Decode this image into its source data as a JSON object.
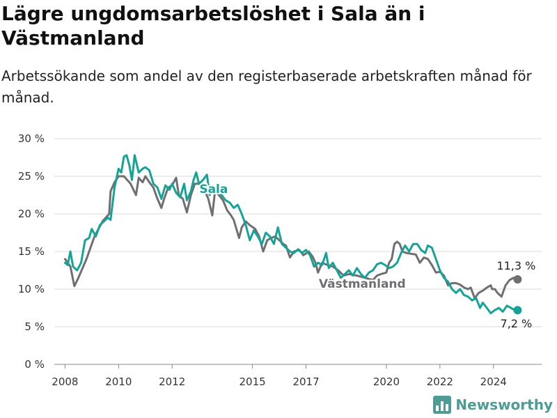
{
  "header": {
    "title": "Lägre ungdomsarbetslöshet i Sala än i Västmanland",
    "subtitle": "Arbetssökande som andel av den registerbaserade arbetskraften månad för månad."
  },
  "brand": {
    "name": "Newsworthy",
    "color": "#4f9b96"
  },
  "chart_data": {
    "type": "line",
    "yticks": [
      "0 %",
      "5 %",
      "10 %",
      "15 %",
      "20 %",
      "25 %",
      "30 %"
    ],
    "ylim": [
      0,
      30
    ],
    "xlim": [
      2007.6,
      2025.8
    ],
    "xticks": [
      {
        "value": 2008,
        "label": "2008"
      },
      {
        "value": 2010,
        "label": "2010"
      },
      {
        "value": 2012,
        "label": "2012"
      },
      {
        "value": 2015,
        "label": "2015"
      },
      {
        "value": 2017,
        "label": "2017"
      },
      {
        "value": 2020,
        "label": "2020"
      },
      {
        "value": 2022,
        "label": "2022"
      },
      {
        "value": 2024,
        "label": "2024"
      }
    ],
    "grid": true,
    "series": [
      {
        "name": "Västmanland",
        "color": "#6e6e73",
        "end_label": "11,3 %",
        "points": [
          [
            2008.0,
            14.0
          ],
          [
            2008.2,
            13.0
          ],
          [
            2008.35,
            10.4
          ],
          [
            2008.5,
            11.5
          ],
          [
            2008.8,
            14.0
          ],
          [
            2009.1,
            17.0
          ],
          [
            2009.4,
            19.0
          ],
          [
            2009.65,
            20.0
          ],
          [
            2009.7,
            23.0
          ],
          [
            2009.85,
            24.2
          ],
          [
            2010.0,
            25.0
          ],
          [
            2010.2,
            25.0
          ],
          [
            2010.45,
            24.0
          ],
          [
            2010.65,
            22.5
          ],
          [
            2010.75,
            24.8
          ],
          [
            2010.9,
            24.2
          ],
          [
            2011.0,
            25.0
          ],
          [
            2011.15,
            24.2
          ],
          [
            2011.3,
            23.5
          ],
          [
            2011.45,
            22.0
          ],
          [
            2011.6,
            20.8
          ],
          [
            2011.7,
            22.0
          ],
          [
            2011.85,
            23.5
          ],
          [
            2012.0,
            23.8
          ],
          [
            2012.15,
            24.8
          ],
          [
            2012.25,
            22.5
          ],
          [
            2012.4,
            22.0
          ],
          [
            2012.55,
            20.2
          ],
          [
            2012.7,
            22.5
          ],
          [
            2012.85,
            24.0
          ],
          [
            2013.0,
            24.0
          ],
          [
            2013.2,
            23.2
          ],
          [
            2013.35,
            22.0
          ],
          [
            2013.5,
            19.8
          ],
          [
            2013.6,
            23.0
          ],
          [
            2013.75,
            22.5
          ],
          [
            2013.9,
            21.8
          ],
          [
            2014.05,
            20.5
          ],
          [
            2014.2,
            19.8
          ],
          [
            2014.3,
            19.2
          ],
          [
            2014.4,
            18.0
          ],
          [
            2014.5,
            16.8
          ],
          [
            2014.6,
            18.2
          ],
          [
            2014.75,
            19.0
          ],
          [
            2014.9,
            18.5
          ],
          [
            2015.1,
            18.0
          ],
          [
            2015.25,
            17.0
          ],
          [
            2015.4,
            15.0
          ],
          [
            2015.55,
            16.5
          ],
          [
            2015.7,
            16.8
          ],
          [
            2015.85,
            17.0
          ],
          [
            2016.0,
            16.5
          ],
          [
            2016.15,
            16.0
          ],
          [
            2016.25,
            15.8
          ],
          [
            2016.4,
            14.2
          ],
          [
            2016.55,
            15.0
          ],
          [
            2016.75,
            15.2
          ],
          [
            2016.9,
            14.5
          ],
          [
            2017.1,
            15.0
          ],
          [
            2017.25,
            14.3
          ],
          [
            2017.35,
            13.5
          ],
          [
            2017.45,
            12.2
          ],
          [
            2017.6,
            13.5
          ],
          [
            2017.8,
            13.2
          ],
          [
            2018.0,
            13.0
          ],
          [
            2018.2,
            12.5
          ],
          [
            2018.4,
            11.8
          ],
          [
            2018.6,
            12.0
          ],
          [
            2018.9,
            11.8
          ],
          [
            2019.2,
            11.5
          ],
          [
            2019.5,
            11.2
          ],
          [
            2019.65,
            11.8
          ],
          [
            2019.8,
            12.0
          ],
          [
            2020.0,
            12.2
          ],
          [
            2020.1,
            13.5
          ],
          [
            2020.2,
            14.0
          ],
          [
            2020.3,
            16.0
          ],
          [
            2020.4,
            16.3
          ],
          [
            2020.5,
            16.0
          ],
          [
            2020.6,
            15.0
          ],
          [
            2020.75,
            14.8
          ],
          [
            2020.9,
            14.7
          ],
          [
            2021.1,
            14.6
          ],
          [
            2021.25,
            13.5
          ],
          [
            2021.4,
            14.2
          ],
          [
            2021.55,
            14.0
          ],
          [
            2021.7,
            13.2
          ],
          [
            2021.85,
            12.2
          ],
          [
            2022.0,
            12.3
          ],
          [
            2022.15,
            11.8
          ],
          [
            2022.3,
            10.5
          ],
          [
            2022.45,
            10.8
          ],
          [
            2022.6,
            10.8
          ],
          [
            2022.75,
            10.6
          ],
          [
            2022.9,
            10.2
          ],
          [
            2023.05,
            10.0
          ],
          [
            2023.15,
            10.2
          ],
          [
            2023.3,
            8.8
          ],
          [
            2023.45,
            9.5
          ],
          [
            2023.6,
            9.8
          ],
          [
            2023.75,
            10.2
          ],
          [
            2023.9,
            10.5
          ],
          [
            2023.95,
            10.0
          ],
          [
            2024.05,
            10.0
          ],
          [
            2024.15,
            9.5
          ],
          [
            2024.3,
            9.0
          ],
          [
            2024.45,
            10.5
          ],
          [
            2024.6,
            11.2
          ],
          [
            2024.75,
            11.5
          ],
          [
            2024.9,
            11.3
          ]
        ]
      },
      {
        "name": "Sala",
        "color": "#15a396",
        "end_label": "7,2 %",
        "points": [
          [
            2008.0,
            13.5
          ],
          [
            2008.1,
            13.2
          ],
          [
            2008.2,
            15.0
          ],
          [
            2008.3,
            13.0
          ],
          [
            2008.45,
            12.5
          ],
          [
            2008.6,
            13.5
          ],
          [
            2008.75,
            16.5
          ],
          [
            2008.9,
            16.8
          ],
          [
            2009.0,
            18.0
          ],
          [
            2009.15,
            17.0
          ],
          [
            2009.3,
            18.5
          ],
          [
            2009.45,
            19.0
          ],
          [
            2009.6,
            19.5
          ],
          [
            2009.7,
            19.2
          ],
          [
            2009.85,
            23.5
          ],
          [
            2010.0,
            26.0
          ],
          [
            2010.1,
            25.5
          ],
          [
            2010.2,
            27.6
          ],
          [
            2010.3,
            27.8
          ],
          [
            2010.4,
            26.5
          ],
          [
            2010.5,
            24.5
          ],
          [
            2010.6,
            27.8
          ],
          [
            2010.75,
            25.5
          ],
          [
            2010.9,
            26.0
          ],
          [
            2011.0,
            26.2
          ],
          [
            2011.15,
            25.8
          ],
          [
            2011.3,
            24.0
          ],
          [
            2011.45,
            23.5
          ],
          [
            2011.6,
            22.0
          ],
          [
            2011.75,
            23.8
          ],
          [
            2011.9,
            23.2
          ],
          [
            2012.0,
            24.0
          ],
          [
            2012.15,
            22.8
          ],
          [
            2012.3,
            22.2
          ],
          [
            2012.45,
            24.0
          ],
          [
            2012.55,
            21.8
          ],
          [
            2012.7,
            23.0
          ],
          [
            2012.8,
            24.5
          ],
          [
            2012.9,
            25.5
          ],
          [
            2013.0,
            24.0
          ],
          [
            2013.15,
            24.5
          ],
          [
            2013.3,
            25.2
          ],
          [
            2013.4,
            22.5
          ],
          [
            2013.55,
            23.5
          ],
          [
            2013.7,
            22.8
          ],
          [
            2013.85,
            22.5
          ],
          [
            2014.0,
            21.8
          ],
          [
            2014.15,
            21.5
          ],
          [
            2014.3,
            20.8
          ],
          [
            2014.45,
            21.2
          ],
          [
            2014.6,
            20.0
          ],
          [
            2014.75,
            18.5
          ],
          [
            2014.9,
            16.5
          ],
          [
            2015.05,
            17.8
          ],
          [
            2015.2,
            17.0
          ],
          [
            2015.35,
            16.0
          ],
          [
            2015.5,
            17.5
          ],
          [
            2015.65,
            17.0
          ],
          [
            2015.8,
            16.0
          ],
          [
            2015.95,
            18.2
          ],
          [
            2016.1,
            16.0
          ],
          [
            2016.25,
            15.5
          ],
          [
            2016.4,
            15.0
          ],
          [
            2016.55,
            14.8
          ],
          [
            2016.7,
            15.3
          ],
          [
            2016.85,
            14.8
          ],
          [
            2017.0,
            15.2
          ],
          [
            2017.15,
            14.5
          ],
          [
            2017.3,
            13.0
          ],
          [
            2017.45,
            13.5
          ],
          [
            2017.6,
            13.2
          ],
          [
            2017.75,
            14.8
          ],
          [
            2017.85,
            12.8
          ],
          [
            2018.0,
            13.5
          ],
          [
            2018.15,
            12.5
          ],
          [
            2018.3,
            11.5
          ],
          [
            2018.45,
            12.0
          ],
          [
            2018.6,
            12.5
          ],
          [
            2018.75,
            11.8
          ],
          [
            2018.9,
            12.8
          ],
          [
            2019.05,
            12.0
          ],
          [
            2019.2,
            11.5
          ],
          [
            2019.35,
            12.2
          ],
          [
            2019.5,
            12.5
          ],
          [
            2019.65,
            13.3
          ],
          [
            2019.8,
            13.5
          ],
          [
            2019.95,
            13.2
          ],
          [
            2020.1,
            12.8
          ],
          [
            2020.25,
            13.0
          ],
          [
            2020.4,
            13.5
          ],
          [
            2020.55,
            14.8
          ],
          [
            2020.7,
            15.8
          ],
          [
            2020.85,
            15.0
          ],
          [
            2021.0,
            16.0
          ],
          [
            2021.15,
            16.0
          ],
          [
            2021.3,
            15.2
          ],
          [
            2021.45,
            14.8
          ],
          [
            2021.55,
            15.8
          ],
          [
            2021.7,
            15.5
          ],
          [
            2021.85,
            14.0
          ],
          [
            2022.0,
            12.5
          ],
          [
            2022.15,
            11.5
          ],
          [
            2022.3,
            11.0
          ],
          [
            2022.45,
            10.0
          ],
          [
            2022.6,
            9.5
          ],
          [
            2022.75,
            10.0
          ],
          [
            2022.9,
            9.2
          ],
          [
            2023.05,
            9.0
          ],
          [
            2023.2,
            8.5
          ],
          [
            2023.35,
            8.8
          ],
          [
            2023.5,
            7.5
          ],
          [
            2023.6,
            8.2
          ],
          [
            2023.75,
            7.5
          ],
          [
            2023.9,
            6.8
          ],
          [
            2024.05,
            7.2
          ],
          [
            2024.2,
            7.5
          ],
          [
            2024.35,
            7.0
          ],
          [
            2024.5,
            7.8
          ],
          [
            2024.65,
            7.5
          ],
          [
            2024.8,
            7.2
          ],
          [
            2024.9,
            7.2
          ]
        ]
      }
    ]
  }
}
